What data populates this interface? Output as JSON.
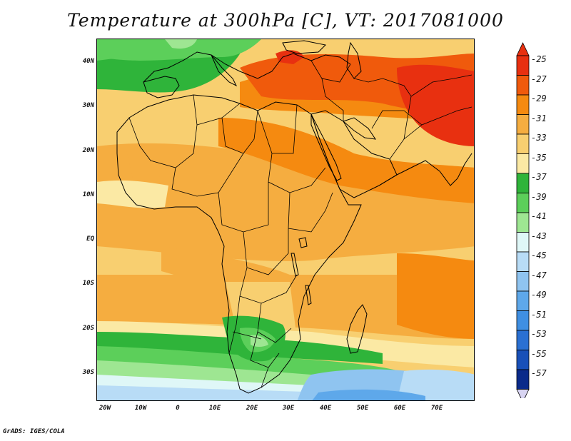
{
  "title": "Temperature at 300hPa [C], VT: 2017081000",
  "footer": "GrADS: IGES/COLA",
  "y_ticks": [
    "40N",
    "30N",
    "20N",
    "10N",
    "EQ",
    "10S",
    "20S",
    "30S"
  ],
  "x_ticks": [
    "20W",
    "10W",
    "0",
    "10E",
    "20E",
    "30E",
    "40E",
    "50E",
    "60E",
    "70E"
  ],
  "colorbar": {
    "labels": [
      "-25",
      "-27",
      "-29",
      "-31",
      "-33",
      "-35",
      "-37",
      "-39",
      "-41",
      "-43",
      "-45",
      "-47",
      "-49",
      "-51",
      "-53",
      "-55",
      "-57"
    ],
    "colors": [
      "#e83010",
      "#f05a0c",
      "#f58a10",
      "#f5ad40",
      "#f8cf70",
      "#fbe9a4",
      "#2fb43a",
      "#5ccf5a",
      "#9ee692",
      "#dff7f7",
      "#b8dcf6",
      "#8fc4f0",
      "#5ea8ea",
      "#3f8fe2",
      "#2a70d2",
      "#1850b8",
      "#0a2a8a"
    ],
    "top_arrow_color": "#e83010",
    "bottom_arrow_color": "#d8d4f2"
  },
  "field_colors": {
    "c25": "#e83010",
    "c27": "#f05a0c",
    "c29": "#f58a10",
    "c31": "#f5ad40",
    "c33": "#f8cf70",
    "c35": "#fbe9a4",
    "c37": "#2fb43a",
    "c39": "#5ccf5a",
    "c41": "#9ee692",
    "c43": "#dff7f7",
    "c45": "#b8dcf6",
    "c47": "#8fc4f0",
    "c49": "#5ea8ea"
  }
}
